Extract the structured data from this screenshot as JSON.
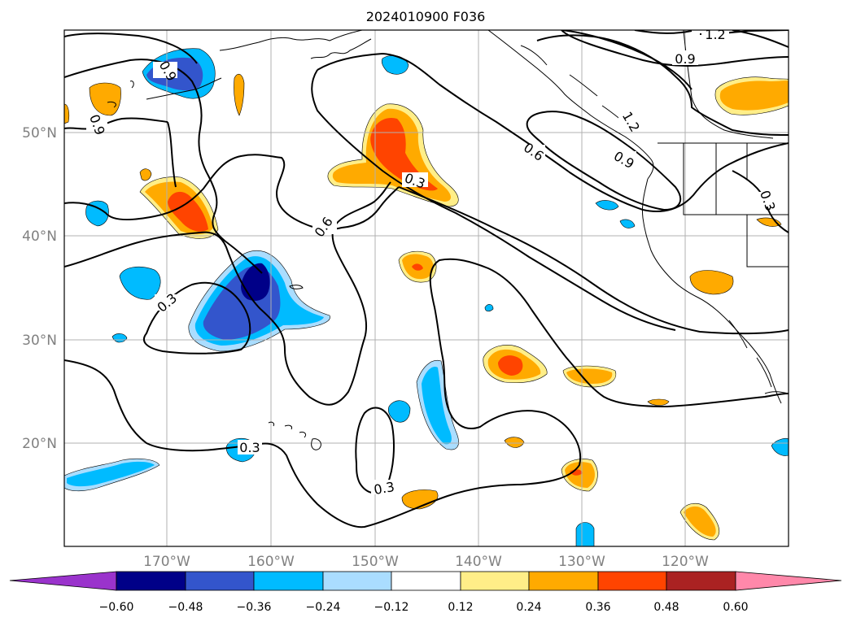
{
  "title": "2024010900 F036",
  "longitude_labels": [
    "170°W",
    "160°W",
    "150°W",
    "140°W",
    "130°W",
    "120°W"
  ],
  "latitude_labels": [
    "50°N",
    "40°N",
    "30°N",
    "20°N"
  ],
  "contour_labels": [
    "0.3",
    "0.6",
    "0.9",
    "1.2"
  ],
  "colorbar": {
    "tick_labels": [
      "−0.60",
      "−0.48",
      "−0.36",
      "−0.24",
      "−0.12",
      "0.12",
      "0.24",
      "0.36",
      "0.48",
      "0.60"
    ],
    "colors": [
      "#9a33cc",
      "#000088",
      "#3355cc",
      "#00bbff",
      "#aaddff",
      "#ffffff",
      "#ffee88",
      "#ffaa00",
      "#ff4400",
      "#aa2222",
      "#ff88aa"
    ]
  },
  "fill_colors": {
    "neg_light": "#aaddff",
    "neg_mid": "#00bbff",
    "neg_strong": "#3355cc",
    "neg_extreme": "#000088",
    "pos_light": "#ffee88",
    "pos_mid": "#ffaa00",
    "pos_strong": "#ff4400"
  }
}
